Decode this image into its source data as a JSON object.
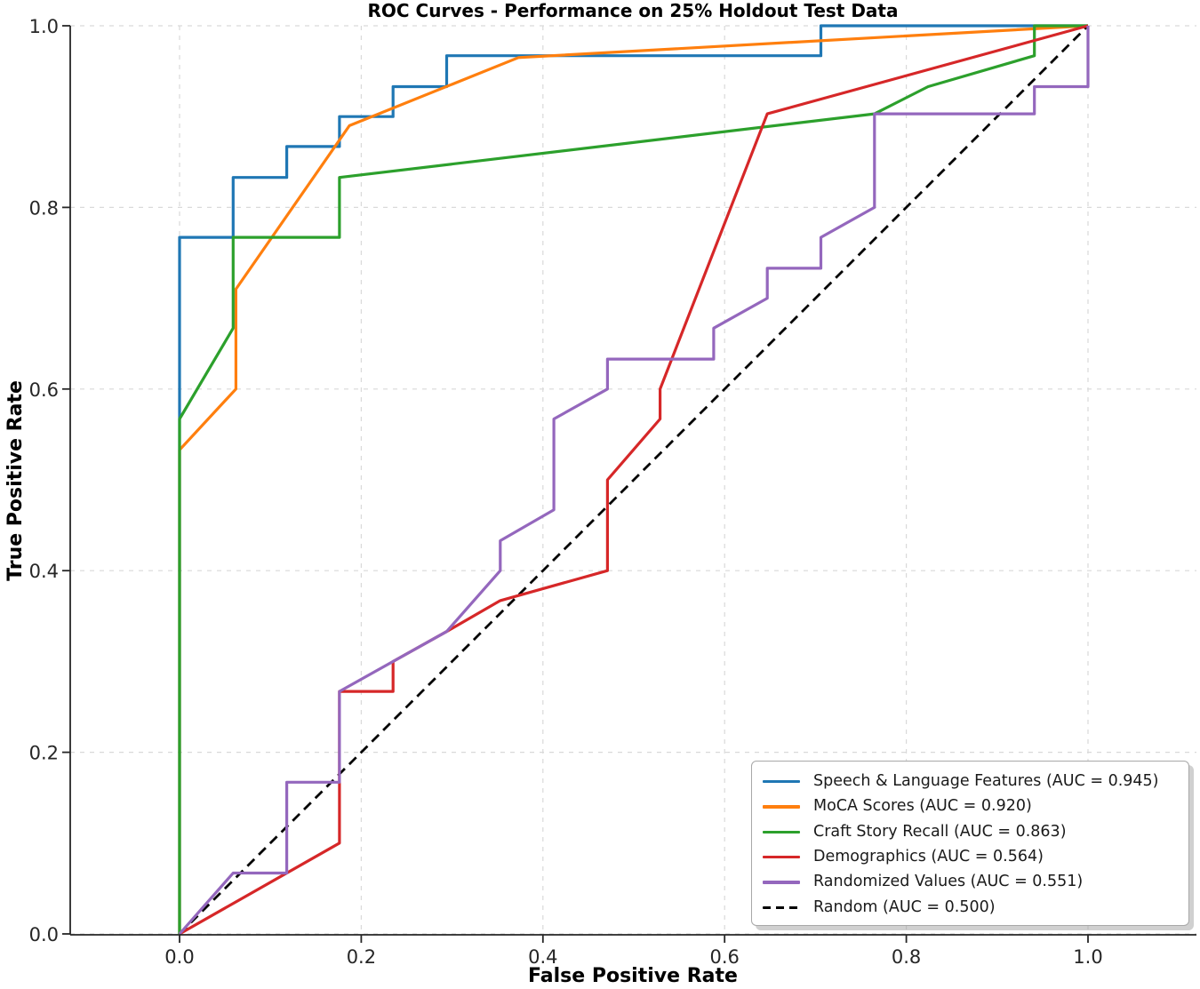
{
  "chart_data": {
    "type": "line",
    "title": "ROC Curves - Performance on 25% Holdout Test Data",
    "xlabel": "False Positive Rate",
    "ylabel": "True Positive Rate",
    "xlim": [
      0.0,
      1.0
    ],
    "ylim": [
      0.0,
      1.0
    ],
    "grid": true,
    "legend_position": "lower right",
    "background_color": "#ffffff",
    "grid_color": "#d9d9d9",
    "axis_color": "#262626",
    "xticks": [
      0.0,
      0.2,
      0.4,
      0.6,
      0.8,
      1.0
    ],
    "xtick_labels": [
      "0.0",
      "0.2",
      "0.4",
      "0.6",
      "0.8",
      "1.0"
    ],
    "yticks": [
      0.0,
      0.2,
      0.4,
      0.6,
      0.8,
      1.0
    ],
    "ytick_labels": [
      "0.0",
      "0.2",
      "0.4",
      "0.6",
      "0.8",
      "1.0"
    ],
    "series": [
      {
        "name": "Speech & Language Features (AUC = 0.945)",
        "auc": 0.945,
        "color": "#1f77b4",
        "style": "solid",
        "zorder": 2,
        "points": [
          [
            0,
            0
          ],
          [
            0,
            0.767
          ],
          [
            0.059,
            0.767
          ],
          [
            0.059,
            0.833
          ],
          [
            0.118,
            0.833
          ],
          [
            0.118,
            0.867
          ],
          [
            0.176,
            0.867
          ],
          [
            0.176,
            0.9
          ],
          [
            0.235,
            0.9
          ],
          [
            0.235,
            0.933
          ],
          [
            0.294,
            0.933
          ],
          [
            0.294,
            0.967
          ],
          [
            0.706,
            0.967
          ],
          [
            0.706,
            1.0
          ],
          [
            1.0,
            1.0
          ]
        ]
      },
      {
        "name": "MoCA Scores (AUC = 0.920)",
        "auc": 0.92,
        "color": "#ff7f0e",
        "style": "solid",
        "zorder": 3,
        "points": [
          [
            0,
            0
          ],
          [
            0,
            0.533
          ],
          [
            0.062,
            0.6
          ],
          [
            0.062,
            0.71
          ],
          [
            0.187,
            0.89
          ],
          [
            0.373,
            0.965
          ],
          [
            1.0,
            1.0
          ]
        ]
      },
      {
        "name": "Craft Story Recall (AUC = 0.863)",
        "auc": 0.863,
        "color": "#2ca02c",
        "style": "solid",
        "zorder": 4,
        "points": [
          [
            0,
            0
          ],
          [
            0,
            0.567
          ],
          [
            0.059,
            0.667
          ],
          [
            0.059,
            0.767
          ],
          [
            0.176,
            0.767
          ],
          [
            0.176,
            0.833
          ],
          [
            0.765,
            0.903
          ],
          [
            0.824,
            0.933
          ],
          [
            0.941,
            0.967
          ],
          [
            0.941,
            1.0
          ],
          [
            1.0,
            1.0
          ]
        ]
      },
      {
        "name": "Demographics (AUC = 0.564)",
        "auc": 0.564,
        "color": "#d62728",
        "style": "solid",
        "zorder": 5,
        "points": [
          [
            0,
            0
          ],
          [
            0.176,
            0.1
          ],
          [
            0.176,
            0.267
          ],
          [
            0.235,
            0.267
          ],
          [
            0.235,
            0.3
          ],
          [
            0.294,
            0.333
          ],
          [
            0.353,
            0.367
          ],
          [
            0.471,
            0.4
          ],
          [
            0.471,
            0.5
          ],
          [
            0.529,
            0.567
          ],
          [
            0.529,
            0.6
          ],
          [
            0.647,
            0.903
          ],
          [
            1.0,
            1.0
          ]
        ]
      },
      {
        "name": "Randomized Values (AUC = 0.551)",
        "auc": 0.551,
        "color": "#9467bd",
        "style": "solid",
        "zorder": 6,
        "points": [
          [
            0,
            0
          ],
          [
            0.059,
            0.067
          ],
          [
            0.118,
            0.067
          ],
          [
            0.118,
            0.167
          ],
          [
            0.176,
            0.167
          ],
          [
            0.176,
            0.267
          ],
          [
            0.294,
            0.333
          ],
          [
            0.353,
            0.4
          ],
          [
            0.353,
            0.433
          ],
          [
            0.412,
            0.467
          ],
          [
            0.412,
            0.567
          ],
          [
            0.471,
            0.6
          ],
          [
            0.471,
            0.633
          ],
          [
            0.588,
            0.633
          ],
          [
            0.588,
            0.667
          ],
          [
            0.647,
            0.7
          ],
          [
            0.647,
            0.733
          ],
          [
            0.706,
            0.733
          ],
          [
            0.706,
            0.767
          ],
          [
            0.765,
            0.8
          ],
          [
            0.765,
            0.903
          ],
          [
            0.941,
            0.903
          ],
          [
            0.941,
            0.933
          ],
          [
            1.0,
            0.933
          ],
          [
            1.0,
            1.0
          ]
        ]
      },
      {
        "name": "Random (AUC = 0.500)",
        "auc": 0.5,
        "color": "#000000",
        "style": "dashed",
        "zorder": 1,
        "points": [
          [
            0,
            0
          ],
          [
            1.0,
            1.0
          ]
        ]
      }
    ]
  }
}
